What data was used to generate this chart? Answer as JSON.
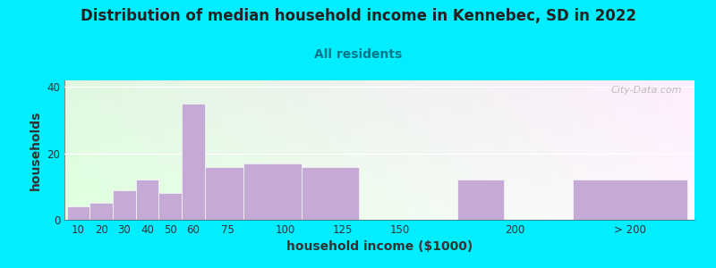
{
  "title": "Distribution of median household income in Kennebec, SD in 2022",
  "subtitle": "All residents",
  "xlabel": "household income ($1000)",
  "ylabel": "households",
  "bar_color": "#c4aad4",
  "background_color": "#00eeff",
  "categories": [
    "10",
    "20",
    "30",
    "40",
    "50",
    "60",
    "75",
    "100",
    "125",
    "150",
    "200",
    "> 200"
  ],
  "bar_lefts": [
    5,
    15,
    25,
    35,
    45,
    55,
    65,
    82,
    107,
    132,
    175,
    225
  ],
  "bar_rights": [
    15,
    25,
    35,
    45,
    55,
    65,
    82,
    107,
    132,
    165,
    195,
    275
  ],
  "heights": [
    4,
    5,
    9,
    12,
    8,
    35,
    16,
    17,
    16,
    0,
    12,
    12
  ],
  "ylim": [
    0,
    42
  ],
  "xlim": [
    4,
    278
  ],
  "yticks": [
    0,
    20,
    40
  ],
  "xtick_positions": [
    10,
    20,
    30,
    40,
    50,
    60,
    75,
    100,
    125,
    150,
    200,
    250
  ],
  "xtick_labels": [
    "10",
    "20",
    "30",
    "40",
    "50",
    "60",
    "75",
    "100",
    "125",
    "150",
    "200",
    "> 200"
  ],
  "title_fontsize": 12,
  "subtitle_fontsize": 10,
  "axis_label_fontsize": 10,
  "tick_fontsize": 8.5,
  "watermark": "City-Data.com"
}
